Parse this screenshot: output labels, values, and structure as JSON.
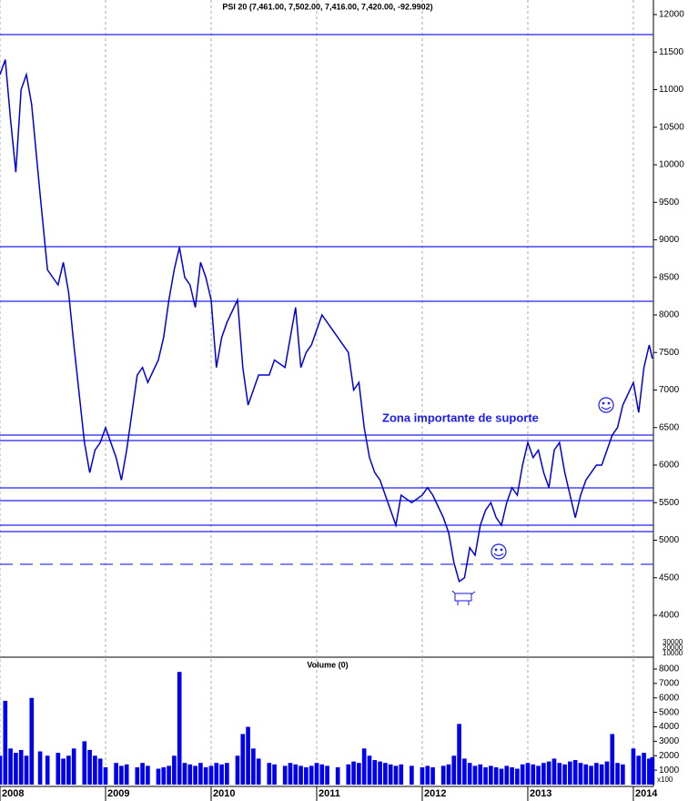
{
  "chart_data": [
    {
      "type": "line",
      "title": "PSI 20 (7,461.00, 7,502.00, 7,416.00, 7,420.00, -92.9902)",
      "x": [
        2008.0,
        2008.05,
        2008.1,
        2008.15,
        2008.2,
        2008.25,
        2008.3,
        2008.38,
        2008.45,
        2008.55,
        2008.6,
        2008.65,
        2008.7,
        2008.8,
        2008.85,
        2008.9,
        2008.95,
        2009.0,
        2009.1,
        2009.15,
        2009.2,
        2009.3,
        2009.35,
        2009.4,
        2009.5,
        2009.55,
        2009.6,
        2009.65,
        2009.7,
        2009.75,
        2009.8,
        2009.85,
        2009.9,
        2009.95,
        2010.0,
        2010.05,
        2010.1,
        2010.15,
        2010.25,
        2010.3,
        2010.35,
        2010.4,
        2010.45,
        2010.55,
        2010.6,
        2010.7,
        2010.75,
        2010.8,
        2010.85,
        2010.9,
        2010.95,
        2011.0,
        2011.05,
        2011.1,
        2011.2,
        2011.3,
        2011.35,
        2011.4,
        2011.45,
        2011.5,
        2011.55,
        2011.6,
        2011.65,
        2011.7,
        2011.75,
        2011.8,
        2011.9,
        2012.0,
        2012.05,
        2012.1,
        2012.2,
        2012.25,
        2012.3,
        2012.35,
        2012.4,
        2012.45,
        2012.5,
        2012.55,
        2012.6,
        2012.65,
        2012.7,
        2012.75,
        2012.8,
        2012.85,
        2012.9,
        2012.95,
        2013.0,
        2013.05,
        2013.1,
        2013.15,
        2013.2,
        2013.25,
        2013.3,
        2013.35,
        2013.4,
        2013.45,
        2013.5,
        2013.55,
        2013.6,
        2013.65,
        2013.7,
        2013.75,
        2013.8,
        2013.85,
        2013.9,
        2014.0,
        2014.05,
        2014.1,
        2014.15,
        2014.18
      ],
      "values": [
        11200,
        11400,
        10600,
        9900,
        11000,
        11200,
        10800,
        9600,
        8600,
        8400,
        8700,
        8300,
        7600,
        6300,
        5900,
        6200,
        6300,
        6500,
        6100,
        5800,
        6200,
        7200,
        7300,
        7100,
        7400,
        7700,
        8200,
        8600,
        8900,
        8500,
        8400,
        8100,
        8700,
        8500,
        8200,
        7300,
        7700,
        7900,
        8200,
        7300,
        6800,
        7000,
        7200,
        7200,
        7400,
        7300,
        7700,
        8100,
        7300,
        7500,
        7600,
        7800,
        8000,
        7900,
        7700,
        7500,
        7000,
        7100,
        6500,
        6100,
        5900,
        5800,
        5600,
        5400,
        5200,
        5600,
        5500,
        5600,
        5700,
        5600,
        5300,
        5100,
        4700,
        4450,
        4500,
        4900,
        4800,
        5200,
        5400,
        5500,
        5300,
        5200,
        5500,
        5700,
        5600,
        6000,
        6300,
        6100,
        6200,
        5900,
        5700,
        6200,
        6300,
        5900,
        5600,
        5300,
        5600,
        5800,
        5900,
        6000,
        6000,
        6200,
        6400,
        6500,
        6800,
        7100,
        6700,
        7300,
        7600,
        7420
      ],
      "color": "#0000dd",
      "xlim": [
        2008.0,
        2014.19
      ],
      "xticks": [
        2008,
        2009,
        2010,
        2011,
        2012,
        2013,
        2014
      ],
      "ylim": [
        3442,
        12194
      ],
      "yticks": [
        4000,
        4500,
        5000,
        5500,
        6000,
        6500,
        7000,
        7500,
        8000,
        8500,
        9000,
        9500,
        10000,
        10500,
        11000,
        11500,
        12000
      ],
      "reference_lines": [
        11733,
        8909,
        8182,
        6400,
        6327,
        5697,
        5527,
        5200,
        5115
      ],
      "dashed_reference_lines": [
        4679
      ],
      "reference_color": "#2222ee",
      "annotation": "Zona importante de suporte",
      "volume_overlay_labels": [
        "30000",
        "20000",
        "10000"
      ],
      "grid": true
    },
    {
      "type": "bar",
      "title": "Volume (0)",
      "x": [
        2008.0,
        2008.05,
        2008.1,
        2008.15,
        2008.2,
        2008.25,
        2008.3,
        2008.38,
        2008.45,
        2008.55,
        2008.6,
        2008.65,
        2008.7,
        2008.8,
        2008.85,
        2008.9,
        2008.95,
        2009.0,
        2009.1,
        2009.15,
        2009.2,
        2009.3,
        2009.35,
        2009.4,
        2009.5,
        2009.55,
        2009.6,
        2009.65,
        2009.7,
        2009.75,
        2009.8,
        2009.85,
        2009.9,
        2009.95,
        2010.0,
        2010.05,
        2010.1,
        2010.15,
        2010.25,
        2010.3,
        2010.35,
        2010.4,
        2010.45,
        2010.55,
        2010.6,
        2010.7,
        2010.75,
        2010.8,
        2010.85,
        2010.9,
        2010.95,
        2011.0,
        2011.05,
        2011.1,
        2011.2,
        2011.3,
        2011.35,
        2011.4,
        2011.45,
        2011.5,
        2011.55,
        2011.6,
        2011.65,
        2011.7,
        2011.75,
        2011.8,
        2011.9,
        2012.0,
        2012.05,
        2012.1,
        2012.2,
        2012.25,
        2012.3,
        2012.35,
        2012.4,
        2012.45,
        2012.5,
        2012.55,
        2012.6,
        2012.65,
        2012.7,
        2012.75,
        2012.8,
        2012.85,
        2012.9,
        2012.95,
        2013.0,
        2013.05,
        2013.1,
        2013.15,
        2013.2,
        2013.25,
        2013.3,
        2013.35,
        2013.4,
        2013.45,
        2013.5,
        2013.55,
        2013.6,
        2013.65,
        2013.7,
        2013.75,
        2013.8,
        2013.85,
        2013.9,
        2014.0,
        2014.05,
        2014.1,
        2014.15,
        2014.18
      ],
      "values": [
        2000,
        5800,
        2500,
        2200,
        2400,
        2000,
        6000,
        2300,
        2000,
        2200,
        1800,
        2000,
        2500,
        3000,
        2400,
        2000,
        1800,
        1200,
        1500,
        1300,
        1400,
        1200,
        1500,
        1300,
        1100,
        1200,
        1300,
        2000,
        7800,
        1500,
        1400,
        1300,
        1500,
        1200,
        1300,
        1500,
        1400,
        1500,
        2000,
        3500,
        4000,
        2500,
        1800,
        1500,
        1400,
        1300,
        1500,
        1400,
        1300,
        1200,
        1300,
        1500,
        1400,
        1300,
        1200,
        1400,
        1600,
        1500,
        2500,
        2000,
        1700,
        1600,
        1500,
        1400,
        1300,
        1400,
        1300,
        1200,
        1300,
        1200,
        1300,
        1400,
        2000,
        4200,
        1800,
        1500,
        1300,
        1400,
        1200,
        1300,
        1200,
        1100,
        1300,
        1200,
        1100,
        1400,
        1500,
        1400,
        1300,
        1500,
        1600,
        1800,
        1500,
        1400,
        1600,
        1700,
        1500,
        1400,
        1300,
        1500,
        1400,
        1600,
        3500,
        1500,
        1400,
        2500,
        2000,
        2200,
        1800,
        1900
      ],
      "color": "#0000ee",
      "xlim": [
        2008.0,
        2014.19
      ],
      "xticks": [
        2008,
        2009,
        2010,
        2011,
        2012,
        2013,
        2014
      ],
      "ylim": [
        0,
        8693
      ],
      "yticks": [
        1000,
        2000,
        3000,
        4000,
        5000,
        6000,
        7000,
        8000
      ],
      "unit_label": "x100",
      "grid": true
    }
  ]
}
